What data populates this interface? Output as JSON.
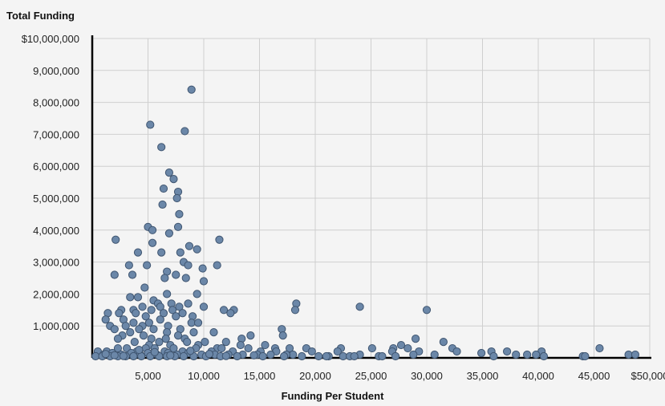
{
  "chart_data": {
    "type": "scatter",
    "ylabel": "Total Funding",
    "xlabel": "Funding Per Student",
    "xlim": [
      0,
      50000
    ],
    "ylim": [
      0,
      10000000
    ],
    "grid": true,
    "point_color": "#6b87a8",
    "point_edge": "#3f5570",
    "x_ticks": [
      {
        "value": 5000,
        "label": "5,000"
      },
      {
        "value": 10000,
        "label": "10,000"
      },
      {
        "value": 15000,
        "label": "15,000"
      },
      {
        "value": 20000,
        "label": "20,000"
      },
      {
        "value": 25000,
        "label": "25,000"
      },
      {
        "value": 30000,
        "label": "30,000"
      },
      {
        "value": 35000,
        "label": "35,000"
      },
      {
        "value": 40000,
        "label": "40,000"
      },
      {
        "value": 45000,
        "label": "45,000"
      },
      {
        "value": 50000,
        "label": "$50,000"
      }
    ],
    "y_ticks": [
      {
        "value": 1000000,
        "label": "1,000,000"
      },
      {
        "value": 2000000,
        "label": "2,000,000"
      },
      {
        "value": 3000000,
        "label": "3,000,000"
      },
      {
        "value": 4000000,
        "label": "4,000,000"
      },
      {
        "value": 5000000,
        "label": "5,000,000"
      },
      {
        "value": 6000000,
        "label": "6,000,000"
      },
      {
        "value": 7000000,
        "label": "7,000,000"
      },
      {
        "value": 8000000,
        "label": "8,000,000"
      },
      {
        "value": 9000000,
        "label": "9,000,000"
      },
      {
        "value": 10000000,
        "label": "$10,000,000"
      }
    ],
    "points": [
      [
        8900,
        8400000
      ],
      [
        5200,
        7300000
      ],
      [
        8300,
        7100000
      ],
      [
        6200,
        6600000
      ],
      [
        6900,
        5800000
      ],
      [
        7300,
        5600000
      ],
      [
        6400,
        5300000
      ],
      [
        7700,
        5200000
      ],
      [
        7600,
        5000000
      ],
      [
        6300,
        4800000
      ],
      [
        7800,
        4500000
      ],
      [
        5000,
        4100000
      ],
      [
        5400,
        4000000
      ],
      [
        7700,
        4100000
      ],
      [
        6900,
        3900000
      ],
      [
        2100,
        3700000
      ],
      [
        5400,
        3600000
      ],
      [
        11400,
        3700000
      ],
      [
        8700,
        3500000
      ],
      [
        9400,
        3400000
      ],
      [
        4100,
        3300000
      ],
      [
        6200,
        3300000
      ],
      [
        7900,
        3300000
      ],
      [
        3300,
        2900000
      ],
      [
        4900,
        2900000
      ],
      [
        8200,
        3000000
      ],
      [
        11200,
        2900000
      ],
      [
        8600,
        2900000
      ],
      [
        6700,
        2700000
      ],
      [
        9900,
        2800000
      ],
      [
        2000,
        2600000
      ],
      [
        3600,
        2600000
      ],
      [
        7500,
        2600000
      ],
      [
        6500,
        2500000
      ],
      [
        8400,
        2500000
      ],
      [
        10000,
        2400000
      ],
      [
        4700,
        2200000
      ],
      [
        3400,
        1900000
      ],
      [
        4100,
        1900000
      ],
      [
        5500,
        1800000
      ],
      [
        5900,
        1700000
      ],
      [
        7100,
        1700000
      ],
      [
        9400,
        2000000
      ],
      [
        6700,
        2000000
      ],
      [
        3700,
        1500000
      ],
      [
        2600,
        1500000
      ],
      [
        4500,
        1600000
      ],
      [
        5300,
        1500000
      ],
      [
        6100,
        1600000
      ],
      [
        7200,
        1500000
      ],
      [
        7800,
        1600000
      ],
      [
        8600,
        1700000
      ],
      [
        10000,
        1600000
      ],
      [
        11800,
        1500000
      ],
      [
        12700,
        1500000
      ],
      [
        18300,
        1700000
      ],
      [
        18200,
        1500000
      ],
      [
        24000,
        1600000
      ],
      [
        30000,
        1500000
      ],
      [
        1400,
        1400000
      ],
      [
        2400,
        1400000
      ],
      [
        3900,
        1400000
      ],
      [
        4800,
        1300000
      ],
      [
        6400,
        1400000
      ],
      [
        8100,
        1400000
      ],
      [
        9000,
        1300000
      ],
      [
        12400,
        1400000
      ],
      [
        1200,
        1200000
      ],
      [
        2800,
        1200000
      ],
      [
        3700,
        1100000
      ],
      [
        5100,
        1100000
      ],
      [
        6100,
        1200000
      ],
      [
        7500,
        1300000
      ],
      [
        8900,
        1100000
      ],
      [
        9500,
        1100000
      ],
      [
        1600,
        1000000
      ],
      [
        3000,
        1000000
      ],
      [
        4500,
        1000000
      ],
      [
        6800,
        1000000
      ],
      [
        7900,
        900000
      ],
      [
        2000,
        900000
      ],
      [
        3400,
        800000
      ],
      [
        4200,
        900000
      ],
      [
        5500,
        900000
      ],
      [
        6700,
        800000
      ],
      [
        9100,
        800000
      ],
      [
        10900,
        800000
      ],
      [
        17000,
        900000
      ],
      [
        17100,
        700000
      ],
      [
        14200,
        700000
      ],
      [
        13400,
        600000
      ],
      [
        29000,
        600000
      ],
      [
        2700,
        700000
      ],
      [
        4600,
        700000
      ],
      [
        5300,
        600000
      ],
      [
        6600,
        600000
      ],
      [
        7700,
        700000
      ],
      [
        8300,
        600000
      ],
      [
        10100,
        500000
      ],
      [
        12000,
        500000
      ],
      [
        15500,
        400000
      ],
      [
        16400,
        300000
      ],
      [
        19200,
        300000
      ],
      [
        22300,
        300000
      ],
      [
        25100,
        300000
      ],
      [
        27000,
        300000
      ],
      [
        27700,
        400000
      ],
      [
        31500,
        500000
      ],
      [
        32300,
        300000
      ],
      [
        45500,
        300000
      ],
      [
        2300,
        600000
      ],
      [
        3800,
        500000
      ],
      [
        5100,
        400000
      ],
      [
        6000,
        500000
      ],
      [
        7000,
        400000
      ],
      [
        8500,
        500000
      ],
      [
        9500,
        400000
      ],
      [
        11200,
        300000
      ],
      [
        13300,
        400000
      ],
      [
        17700,
        300000
      ],
      [
        28300,
        300000
      ],
      [
        1300,
        200000
      ],
      [
        2300,
        300000
      ],
      [
        3100,
        300000
      ],
      [
        4000,
        200000
      ],
      [
        4800,
        300000
      ],
      [
        5600,
        300000
      ],
      [
        6500,
        200000
      ],
      [
        7300,
        300000
      ],
      [
        8100,
        200000
      ],
      [
        9300,
        300000
      ],
      [
        10700,
        200000
      ],
      [
        11600,
        300000
      ],
      [
        12600,
        200000
      ],
      [
        14000,
        300000
      ],
      [
        15100,
        200000
      ],
      [
        16500,
        200000
      ],
      [
        18000,
        100000
      ],
      [
        19700,
        200000
      ],
      [
        22000,
        200000
      ],
      [
        24000,
        100000
      ],
      [
        26900,
        200000
      ],
      [
        29300,
        200000
      ],
      [
        32700,
        200000
      ],
      [
        35800,
        200000
      ],
      [
        37200,
        200000
      ],
      [
        40300,
        200000
      ],
      [
        500,
        200000
      ],
      [
        1000,
        100000
      ],
      [
        1800,
        150000
      ],
      [
        2600,
        100000
      ],
      [
        3500,
        150000
      ],
      [
        4300,
        100000
      ],
      [
        5000,
        150000
      ],
      [
        5800,
        100000
      ],
      [
        6800,
        150000
      ],
      [
        7600,
        100000
      ],
      [
        8600,
        150000
      ],
      [
        9800,
        100000
      ],
      [
        11000,
        100000
      ],
      [
        12200,
        100000
      ],
      [
        13500,
        100000
      ],
      [
        14800,
        100000
      ],
      [
        16000,
        100000
      ],
      [
        17400,
        100000
      ],
      [
        18800,
        50000
      ],
      [
        20300,
        50000
      ],
      [
        21200,
        50000
      ],
      [
        22500,
        50000
      ],
      [
        23100,
        50000
      ],
      [
        25700,
        50000
      ],
      [
        27200,
        50000
      ],
      [
        28800,
        100000
      ],
      [
        30700,
        100000
      ],
      [
        34900,
        150000
      ],
      [
        38000,
        100000
      ],
      [
        39000,
        100000
      ],
      [
        39800,
        100000
      ],
      [
        44000,
        50000
      ],
      [
        44200,
        50000
      ],
      [
        48100,
        100000
      ],
      [
        48700,
        100000
      ],
      [
        300,
        50000
      ],
      [
        900,
        30000
      ],
      [
        1600,
        50000
      ],
      [
        2300,
        30000
      ],
      [
        3000,
        50000
      ],
      [
        3700,
        30000
      ],
      [
        4400,
        50000
      ],
      [
        5200,
        30000
      ],
      [
        6000,
        50000
      ],
      [
        6700,
        30000
      ],
      [
        7400,
        50000
      ],
      [
        8200,
        30000
      ],
      [
        9100,
        50000
      ],
      [
        10200,
        30000
      ],
      [
        11500,
        50000
      ],
      [
        13000,
        30000
      ],
      [
        15300,
        50000
      ],
      [
        17200,
        30000
      ],
      [
        21000,
        30000
      ],
      [
        23500,
        30000
      ],
      [
        26000,
        30000
      ],
      [
        36000,
        30000
      ],
      [
        40500,
        30000
      ],
      [
        1200,
        120000
      ],
      [
        2000,
        80000
      ],
      [
        2800,
        60000
      ],
      [
        4200,
        250000
      ],
      [
        5600,
        180000
      ],
      [
        7000,
        80000
      ],
      [
        8800,
        220000
      ],
      [
        10500,
        120000
      ],
      [
        12000,
        60000
      ],
      [
        14500,
        80000
      ]
    ]
  }
}
